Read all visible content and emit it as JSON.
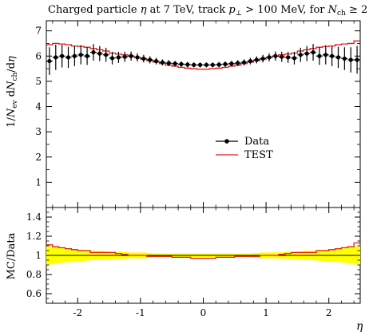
{
  "chart_data": [
    {
      "type": "line",
      "panel": "main",
      "title": "Charged particle η at 7 TeV, track p⊥ > 100 MeV, for Nch ≥ 2",
      "ylabel": "1/Nev dNch/dη",
      "xlim": [
        -2.5,
        2.5
      ],
      "ylim": [
        0,
        7.4
      ],
      "yticks": [
        1,
        2,
        3,
        4,
        5,
        6,
        7
      ],
      "legend": {
        "position": "center-right",
        "entries": [
          "Data",
          "TEST"
        ]
      },
      "series": [
        {
          "name": "Data",
          "style": "points-with-errorbars",
          "color": "#000000",
          "x": [
            -2.45,
            -2.35,
            -2.25,
            -2.15,
            -2.05,
            -1.95,
            -1.85,
            -1.75,
            -1.65,
            -1.55,
            -1.45,
            -1.35,
            -1.25,
            -1.15,
            -1.05,
            -0.95,
            -0.85,
            -0.75,
            -0.65,
            -0.55,
            -0.45,
            -0.35,
            -0.25,
            -0.15,
            -0.05,
            0.05,
            0.15,
            0.25,
            0.35,
            0.45,
            0.55,
            0.65,
            0.75,
            0.85,
            0.95,
            1.05,
            1.15,
            1.25,
            1.35,
            1.45,
            1.55,
            1.65,
            1.75,
            1.85,
            1.95,
            2.05,
            2.15,
            2.25,
            2.35,
            2.45
          ],
          "y": [
            5.8,
            5.95,
            6.0,
            5.95,
            6.0,
            6.05,
            6.0,
            6.15,
            6.1,
            6.05,
            5.92,
            5.95,
            5.97,
            6.0,
            5.95,
            5.9,
            5.85,
            5.8,
            5.75,
            5.72,
            5.7,
            5.68,
            5.66,
            5.65,
            5.65,
            5.65,
            5.65,
            5.66,
            5.68,
            5.7,
            5.72,
            5.75,
            5.8,
            5.85,
            5.9,
            5.95,
            6.0,
            5.97,
            5.95,
            5.92,
            6.05,
            6.1,
            6.15,
            6.0,
            6.05,
            6.0,
            5.95,
            5.9,
            5.85,
            5.85
          ],
          "yerr": [
            0.55,
            0.5,
            0.45,
            0.42,
            0.4,
            0.38,
            0.35,
            0.33,
            0.3,
            0.28,
            0.25,
            0.22,
            0.2,
            0.18,
            0.16,
            0.15,
            0.14,
            0.13,
            0.12,
            0.12,
            0.11,
            0.11,
            0.11,
            0.1,
            0.1,
            0.1,
            0.1,
            0.11,
            0.11,
            0.11,
            0.12,
            0.12,
            0.13,
            0.14,
            0.15,
            0.16,
            0.18,
            0.2,
            0.22,
            0.25,
            0.28,
            0.3,
            0.33,
            0.35,
            0.38,
            0.4,
            0.42,
            0.45,
            0.5,
            0.55
          ]
        },
        {
          "name": "TEST",
          "style": "step",
          "color": "#e41a1c",
          "bin_edges": [
            -2.5,
            -2.4,
            -2.3,
            -2.2,
            -2.1,
            -2.0,
            -1.9,
            -1.8,
            -1.7,
            -1.6,
            -1.5,
            -1.4,
            -1.3,
            -1.2,
            -1.1,
            -1.0,
            -0.9,
            -0.8,
            -0.7,
            -0.6,
            -0.5,
            -0.4,
            -0.3,
            -0.2,
            -0.1,
            0.0,
            0.1,
            0.2,
            0.3,
            0.4,
            0.5,
            0.6,
            0.7,
            0.8,
            0.9,
            1.0,
            1.1,
            1.2,
            1.3,
            1.4,
            1.5,
            1.6,
            1.7,
            1.8,
            1.9,
            2.0,
            2.1,
            2.2,
            2.3,
            2.4,
            2.5
          ],
          "y": [
            6.45,
            6.5,
            6.48,
            6.45,
            6.4,
            6.38,
            6.35,
            6.3,
            6.25,
            6.2,
            6.12,
            6.08,
            6.05,
            6.0,
            5.95,
            5.88,
            5.82,
            5.76,
            5.7,
            5.64,
            5.6,
            5.55,
            5.52,
            5.5,
            5.48,
            5.48,
            5.5,
            5.52,
            5.55,
            5.6,
            5.64,
            5.7,
            5.76,
            5.82,
            5.88,
            5.95,
            6.0,
            6.05,
            6.08,
            6.12,
            6.2,
            6.25,
            6.3,
            6.35,
            6.38,
            6.4,
            6.45,
            6.48,
            6.5,
            6.6
          ]
        }
      ]
    },
    {
      "type": "line",
      "panel": "ratio",
      "ylabel": "MC/Data",
      "xlabel": "η",
      "xlim": [
        -2.5,
        2.5
      ],
      "ylim": [
        0.5,
        1.5
      ],
      "yticks": [
        0.6,
        0.8,
        1,
        1.2,
        1.4
      ],
      "xticks": [
        -2,
        -1,
        0,
        1,
        2
      ],
      "band": {
        "color": "#ffff00",
        "half_width": [
          0.1,
          0.09,
          0.08,
          0.07,
          0.07,
          0.06,
          0.06,
          0.05,
          0.05,
          0.05,
          0.04,
          0.04,
          0.04,
          0.03,
          0.03,
          0.03,
          0.03,
          0.02,
          0.02,
          0.02,
          0.02,
          0.02,
          0.02,
          0.02,
          0.02,
          0.02,
          0.02,
          0.02,
          0.02,
          0.02,
          0.02,
          0.02,
          0.02,
          0.02,
          0.03,
          0.03,
          0.03,
          0.03,
          0.04,
          0.04,
          0.04,
          0.05,
          0.05,
          0.05,
          0.06,
          0.06,
          0.07,
          0.07,
          0.08,
          0.09,
          0.1
        ]
      },
      "series": [
        {
          "name": "TEST",
          "style": "step",
          "color": "#e41a1c",
          "y": [
            1.11,
            1.09,
            1.08,
            1.07,
            1.06,
            1.05,
            1.05,
            1.03,
            1.03,
            1.03,
            1.03,
            1.02,
            1.01,
            1.0,
            1.0,
            1.0,
            0.99,
            0.99,
            0.99,
            0.99,
            0.98,
            0.98,
            0.98,
            0.97,
            0.97,
            0.97,
            0.97,
            0.98,
            0.98,
            0.98,
            0.99,
            0.99,
            0.99,
            0.99,
            1.0,
            1.0,
            1.0,
            1.01,
            1.02,
            1.03,
            1.03,
            1.03,
            1.03,
            1.05,
            1.05,
            1.06,
            1.07,
            1.08,
            1.09,
            1.13
          ]
        }
      ]
    }
  ]
}
